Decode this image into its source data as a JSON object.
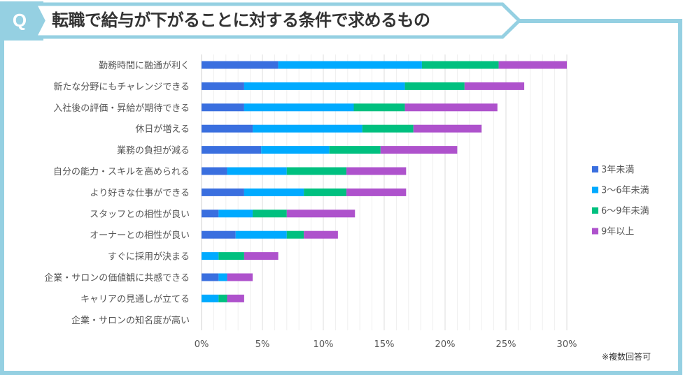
{
  "header": {
    "badge": "Q",
    "title": "転職で給与が下がることに対する条件で求めるもの"
  },
  "footnote": "※複数回答可",
  "colors": {
    "frame": "#95d0e2",
    "series": [
      "#3a6fdf",
      "#00aaff",
      "#00c07f",
      "#ae52cc"
    ]
  },
  "chart_data": {
    "type": "bar",
    "orientation": "horizontal",
    "stacked": true,
    "title": "転職で給与が下がることに対する条件で求めるもの",
    "xlabel": "",
    "ylabel": "",
    "xlim": [
      0,
      30
    ],
    "x_ticks": [
      "0%",
      "5%",
      "10%",
      "15%",
      "20%",
      "25%",
      "30%"
    ],
    "x_tick_values": [
      0,
      5,
      10,
      15,
      20,
      25,
      30
    ],
    "grid": true,
    "minor_grid_step": 1,
    "legend_position": "right",
    "categories": [
      "勤務時間に融通が利く",
      "新たな分野にもチャレンジできる",
      "入社後の評価・昇給が期待できる",
      "休日が増える",
      "業務の負担が減る",
      "自分の能力・スキルを高められる",
      "より好きな仕事ができる",
      "スタッフとの相性が良い",
      "オーナーとの相性が良い",
      "すぐに採用が決まる",
      "企業・サロンの価値観に共感できる",
      "キャリアの見通しが立てる",
      "企業・サロンの知名度が高い"
    ],
    "series": [
      {
        "name": "3年未満",
        "values": [
          6.3,
          3.5,
          3.5,
          4.2,
          4.9,
          2.1,
          3.5,
          1.4,
          2.8,
          0.0,
          1.4,
          0.0,
          0.0
        ]
      },
      {
        "name": "3～6年未満",
        "values": [
          11.8,
          13.2,
          9.0,
          9.0,
          5.6,
          4.9,
          4.9,
          2.8,
          4.2,
          1.4,
          0.7,
          1.4,
          0.0
        ]
      },
      {
        "name": "6～9年未満",
        "values": [
          6.3,
          4.9,
          4.2,
          4.2,
          4.2,
          4.9,
          3.5,
          2.8,
          1.4,
          2.1,
          0.0,
          0.7,
          0.0
        ]
      },
      {
        "name": "9年以上",
        "values": [
          5.6,
          4.9,
          7.6,
          5.6,
          6.3,
          4.9,
          4.9,
          5.6,
          2.8,
          2.8,
          2.1,
          1.4,
          0.0
        ]
      }
    ]
  }
}
